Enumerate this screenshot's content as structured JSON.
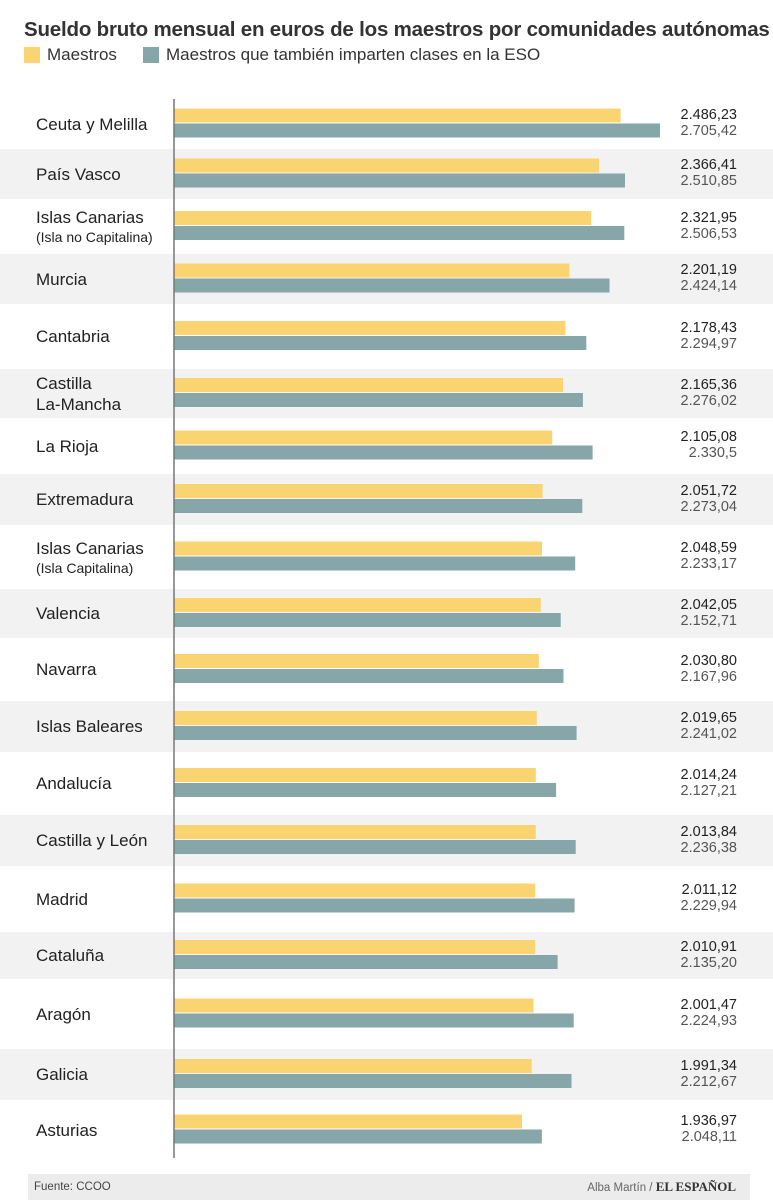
{
  "title": "Sueldo bruto mensual en euros de los maestros por comunidades autónomas",
  "legend": [
    {
      "label": "Maestros",
      "color": "#fad470"
    },
    {
      "label": "Maestros que también imparten clases en la ESO",
      "color": "#86a6aa"
    }
  ],
  "chart_data": {
    "type": "bar",
    "orientation": "horizontal",
    "title": "Sueldo bruto mensual en euros de los maestros por comunidades autónomas",
    "categories": [
      {
        "name": "Ceuta y Melilla",
        "sub": ""
      },
      {
        "name": "País Vasco",
        "sub": ""
      },
      {
        "name": "Islas Canarias",
        "sub": "(Isla no Capitalina)"
      },
      {
        "name": "Murcia",
        "sub": ""
      },
      {
        "name": "Cantabria",
        "sub": ""
      },
      {
        "name": "Castilla",
        "sub": "La-Mancha"
      },
      {
        "name": "La Rioja",
        "sub": ""
      },
      {
        "name": "Extremadura",
        "sub": ""
      },
      {
        "name": "Islas Canarias",
        "sub": "(Isla Capitalina)"
      },
      {
        "name": "Valencia",
        "sub": ""
      },
      {
        "name": "Navarra",
        "sub": ""
      },
      {
        "name": "Islas Baleares",
        "sub": ""
      },
      {
        "name": "Andalucía",
        "sub": ""
      },
      {
        "name": "Castilla y León",
        "sub": ""
      },
      {
        "name": "Madrid",
        "sub": ""
      },
      {
        "name": "Cataluña",
        "sub": ""
      },
      {
        "name": "Aragón",
        "sub": ""
      },
      {
        "name": "Galicia",
        "sub": ""
      },
      {
        "name": "Asturias",
        "sub": ""
      }
    ],
    "series": [
      {
        "name": "Maestros",
        "color": "#fad470",
        "values": [
          2486.23,
          2366.41,
          2321.95,
          2201.19,
          2178.43,
          2165.36,
          2105.08,
          2051.72,
          2048.59,
          2042.05,
          2030.8,
          2019.65,
          2014.24,
          2013.84,
          2011.12,
          2010.91,
          2001.47,
          1991.34,
          1936.97
        ],
        "labels": [
          "2.486,23",
          "2.366,41",
          "2.321,95",
          "2.201,19",
          "2.178,43",
          "2.165,36",
          "2.105,08",
          "2.051,72",
          "2.048,59",
          "2.042,05",
          "2.030,80",
          "2.019,65",
          "2.014,24",
          "2.013,84",
          "2.011,12",
          "2.010,91",
          "2.001,47",
          "1.991,34",
          "1.936,97"
        ]
      },
      {
        "name": "Maestros que también imparten clases en la ESO",
        "color": "#86a6aa",
        "values": [
          2705.42,
          2510.85,
          2506.53,
          2424.14,
          2294.97,
          2276.02,
          2330.5,
          2273.04,
          2233.17,
          2152.71,
          2167.96,
          2241.02,
          2127.21,
          2236.38,
          2229.94,
          2135.2,
          2224.93,
          2212.67,
          2048.11
        ],
        "labels": [
          "2.705,42",
          "2.510,85",
          "2.506,53",
          "2.424,14",
          "2.294,97",
          "2.276,02",
          "2.330,5",
          "2.273,04",
          "2.233,17",
          "2.152,71",
          "2.167,96",
          "2.241,02",
          "2.127,21",
          "2.236,38",
          "2.229,94",
          "2.135,20",
          "2.224,93",
          "2.212,67",
          "2.048,11"
        ]
      }
    ],
    "xlim": [
      0,
      2705.42
    ],
    "xlabel": "",
    "ylabel": ""
  },
  "footer": {
    "source_label": "Fuente:",
    "source": "CCOO",
    "author": "Alba Martín /",
    "brand": "EL ESPAÑOL"
  }
}
